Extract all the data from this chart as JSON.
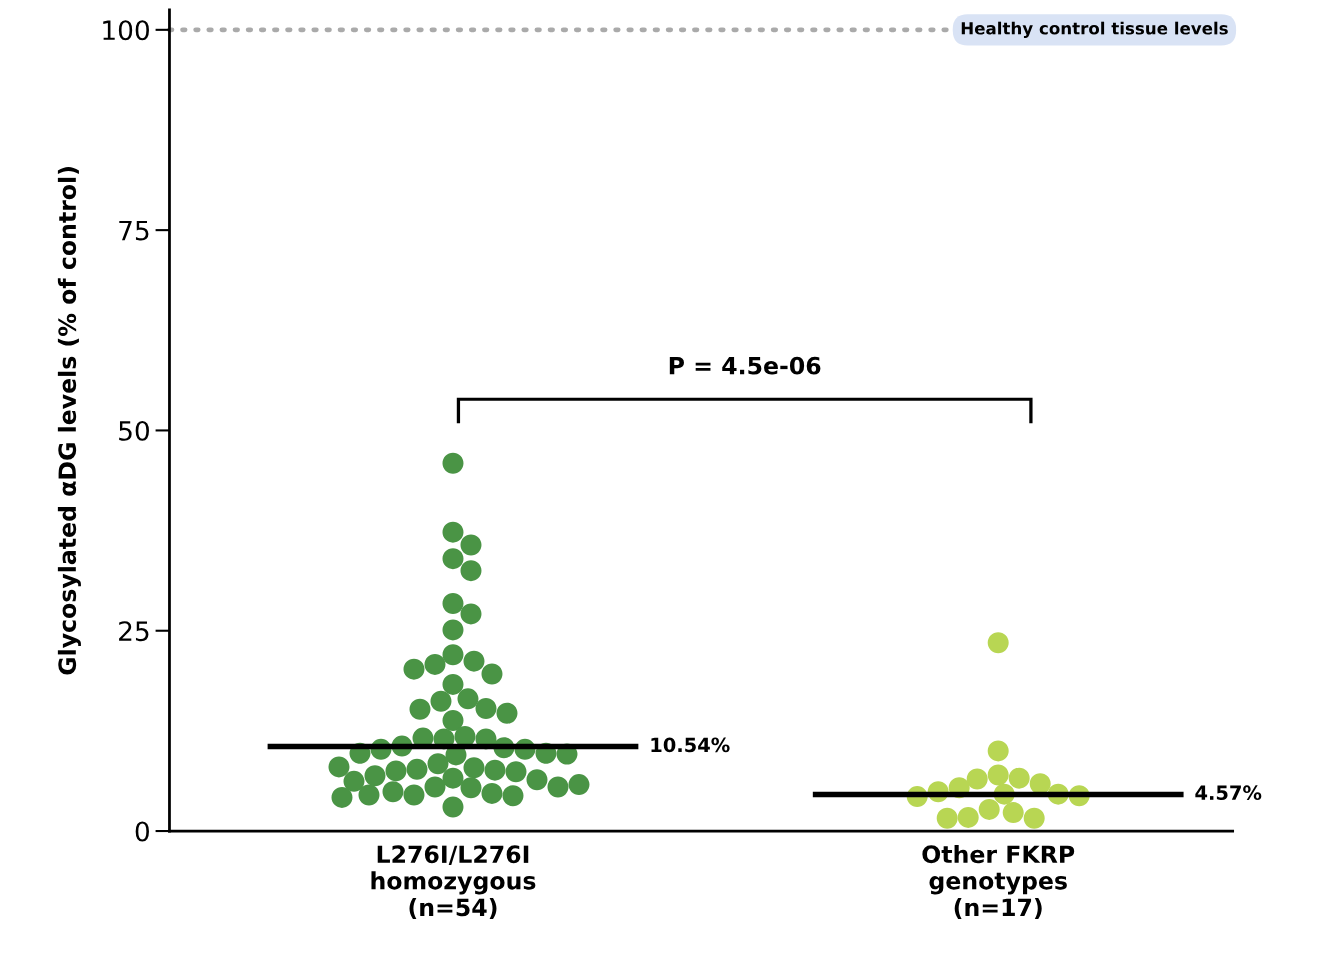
{
  "chart_data": {
    "type": "scatter",
    "ylabel": "Glycosylated αDG levels (% of control)",
    "categories": [
      "L276I/L276I\nhomozygous\n(n=54)",
      "Other FKRP\ngenotypes\n(n=17)"
    ],
    "series": [
      {
        "x": [
          "L276I/L276I\nhomozygous\n(n=54)",
          "L276I/L276I\nhomozygous\n(n=54)",
          "L276I/L276I\nhomozygous\n(n=54)",
          "L276I/L276I\nhomozygous\n(n=54)",
          "L276I/L276I\nhomozygous\n(n=54)",
          "L276I/L276I\nhomozygous\n(n=54)",
          "L276I/L276I\nhomozygous\n(n=54)",
          "L276I/L276I\nhomozygous\n(n=54)",
          "L276I/L276I\nhomozygous\n(n=54)",
          "L276I/L276I\nhomozygous\n(n=54)",
          "L276I/L276I\nhomozygous\n(n=54)",
          "L276I/L276I\nhomozygous\n(n=54)",
          "L276I/L276I\nhomozygous\n(n=54)",
          "L276I/L276I\nhomozygous\n(n=54)",
          "L276I/L276I\nhomozygous\n(n=54)",
          "L276I/L276I\nhomozygous\n(n=54)",
          "L276I/L276I\nhomozygous\n(n=54)",
          "L276I/L276I\nhomozygous\n(n=54)",
          "L276I/L276I\nhomozygous\n(n=54)",
          "L276I/L276I\nhomozygous\n(n=54)",
          "L276I/L276I\nhomozygous\n(n=54)",
          "L276I/L276I\nhomozygous\n(n=54)",
          "L276I/L276I\nhomozygous\n(n=54)",
          "L276I/L276I\nhomozygous\n(n=54)",
          "L276I/L276I\nhomozygous\n(n=54)",
          "L276I/L276I\nhomozygous\n(n=54)",
          "L276I/L276I\nhomozygous\n(n=54)",
          "L276I/L276I\nhomozygous\n(n=54)",
          "L276I/L276I\nhomozygous\n(n=54)",
          "L276I/L276I\nhomozygous\n(n=54)",
          "L276I/L276I\nhomozygous\n(n=54)",
          "L276I/L276I\nhomozygous\n(n=54)",
          "L276I/L276I\nhomozygous\n(n=54)",
          "L276I/L276I\nhomozygous\n(n=54)",
          "L276I/L276I\nhomozygous\n(n=54)",
          "L276I/L276I\nhomozygous\n(n=54)",
          "L276I/L276I\nhomozygous\n(n=54)",
          "L276I/L276I\nhomozygous\n(n=54)",
          "L276I/L276I\nhomozygous\n(n=54)",
          "L276I/L276I\nhomozygous\n(n=54)",
          "L276I/L276I\nhomozygous\n(n=54)",
          "L276I/L276I\nhomozygous\n(n=54)",
          "L276I/L276I\nhomozygous\n(n=54)",
          "L276I/L276I\nhomozygous\n(n=54)",
          "L276I/L276I\nhomozygous\n(n=54)",
          "L276I/L276I\nhomozygous\n(n=54)",
          "L276I/L276I\nhomozygous\n(n=54)",
          "L276I/L276I\nhomozygous\n(n=54)",
          "L276I/L276I\nhomozygous\n(n=54)",
          "L276I/L276I\nhomozygous\n(n=54)",
          "L276I/L276I\nhomozygous\n(n=54)",
          "L276I/L276I\nhomozygous\n(n=54)",
          "L276I/L276I\nhomozygous\n(n=54)",
          "L276I/L276I\nhomozygous\n(n=54)"
        ],
        "color": "#4a9445",
        "values": [
          45.9,
          37.3,
          35.7,
          34.0,
          32.5,
          28.4,
          27.1,
          25.1,
          22.0,
          21.2,
          20.8,
          20.2,
          19.6,
          18.3,
          16.5,
          16.2,
          15.3,
          15.2,
          14.7,
          13.8,
          11.8,
          11.5,
          11.6,
          11.5,
          10.6,
          10.4,
          10.2,
          10.2,
          9.7,
          9.7,
          9.6,
          9.5,
          8.4,
          7.9,
          7.7,
          7.6,
          7.5,
          7.4,
          6.9,
          6.6,
          6.4,
          6.2,
          5.5,
          5.4,
          5.5,
          4.7,
          4.5,
          4.4,
          4.9,
          4.5,
          4.2,
          3.0,
          8.0,
          5.8
        ]
      },
      {
        "x": [
          "Other FKRP\ngenotypes\n(n=17)",
          "Other FKRP\ngenotypes\n(n=17)",
          "Other FKRP\ngenotypes\n(n=17)",
          "Other FKRP\ngenotypes\n(n=17)",
          "Other FKRP\ngenotypes\n(n=17)",
          "Other FKRP\ngenotypes\n(n=17)",
          "Other FKRP\ngenotypes\n(n=17)",
          "Other FKRP\ngenotypes\n(n=17)",
          "Other FKRP\ngenotypes\n(n=17)",
          "Other FKRP\ngenotypes\n(n=17)",
          "Other FKRP\ngenotypes\n(n=17)",
          "Other FKRP\ngenotypes\n(n=17)",
          "Other FKRP\ngenotypes\n(n=17)",
          "Other FKRP\ngenotypes\n(n=17)",
          "Other FKRP\ngenotypes\n(n=17)",
          "Other FKRP\ngenotypes\n(n=17)",
          "Other FKRP\ngenotypes\n(n=17)"
        ],
        "color": "#b8d653",
        "values": [
          23.5,
          10.0,
          7.0,
          6.6,
          6.5,
          5.9,
          5.4,
          4.9,
          4.6,
          4.6,
          4.4,
          4.3,
          2.7,
          2.3,
          1.7,
          1.6,
          1.6
        ]
      }
    ],
    "ylim": [
      0,
      102.5
    ],
    "yticks": [
      0,
      25,
      50,
      75,
      100
    ],
    "ref_lines": [
      {
        "axis": "y",
        "value": 100,
        "label": "Healthy control tissue levels",
        "color": "#aaaaaa",
        "line_style": "dotted"
      },
      {
        "axis": "y",
        "value": 10.54,
        "label": "10.54%",
        "color": "#000000",
        "line_style": "solid"
      },
      {
        "axis": "y",
        "value": 4.57,
        "label": "4.57%",
        "color": "#000000",
        "line_style": "solid"
      }
    ],
    "annotations": [
      "P = 4.5e-06"
    ],
    "grid": false,
    "legend": false,
    "marker": "circle"
  }
}
